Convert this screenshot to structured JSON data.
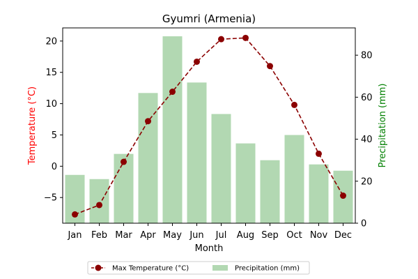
{
  "chart_data": {
    "type": "bar+line",
    "title": "Gyumri (Armenia)",
    "xlabel": "Month",
    "categories": [
      "Jan",
      "Feb",
      "Mar",
      "Apr",
      "May",
      "Jun",
      "Jul",
      "Aug",
      "Sep",
      "Oct",
      "Nov",
      "Dec"
    ],
    "y_left": {
      "label": "Temperature (°C)",
      "color": "#ff0000",
      "ylim": [
        -9.1,
        22.1
      ],
      "ticks": [
        -5,
        0,
        5,
        10,
        15,
        20
      ]
    },
    "y_right": {
      "label": "Precipitation (mm)",
      "color": "#008000",
      "ylim": [
        0,
        93
      ],
      "ticks": [
        0,
        20,
        40,
        60,
        80
      ]
    },
    "series": [
      {
        "name": "Max Temperature (°C)",
        "type": "line",
        "axis": "left",
        "color": "#8b0000",
        "style": "dashed-with-circle-markers",
        "values": [
          -7.7,
          -6.2,
          0.7,
          7.2,
          11.9,
          16.7,
          20.3,
          20.5,
          16.0,
          9.8,
          2.0,
          -4.7
        ]
      },
      {
        "name": "Precipitation (mm)",
        "type": "bar",
        "axis": "right",
        "color": "#b2d8b2",
        "values": [
          23,
          21,
          33,
          62,
          89,
          67,
          52,
          38,
          30,
          42,
          28,
          25
        ]
      }
    ],
    "legend": {
      "placement": "bottom-center",
      "entries": [
        "Max Temperature (°C)",
        "Precipitation (mm)"
      ]
    },
    "grid": false
  }
}
